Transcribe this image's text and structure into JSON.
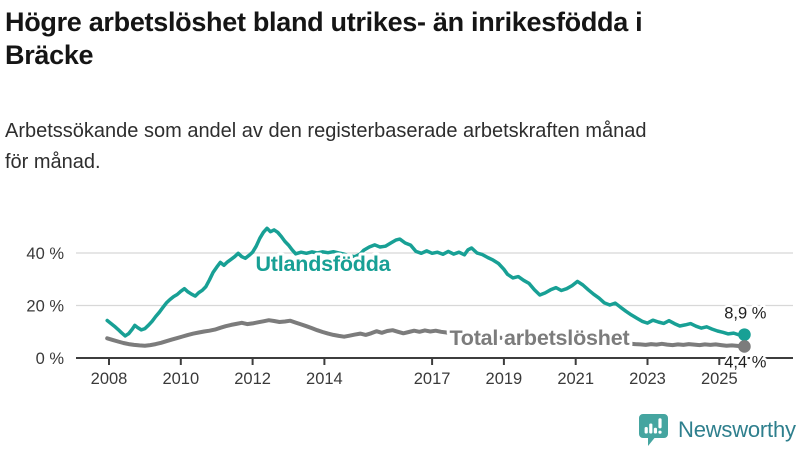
{
  "header": {
    "title_line1": "Högre arbetslöshet bland utrikes- än inrikesfödda i",
    "title_line2": "Bräcke",
    "subtitle_line1": "Arbetssökande som andel av den registerbaserade arbetskraften månad",
    "subtitle_line2": "för månad."
  },
  "chart_data": {
    "type": "line",
    "title": "Högre arbetslöshet bland utrikes- än inrikesfödda i Bräcke",
    "subtitle": "Arbetssökande som andel av den registerbaserade arbetskraften månad för månad.",
    "grid": "horizontal",
    "legend_position": "inline-labels",
    "x_axis": {
      "ticks": [
        2008,
        2010,
        2012,
        2014,
        2017,
        2019,
        2021,
        2023,
        2025
      ],
      "tick_labels": [
        "2008",
        "2010",
        "2012",
        "2014",
        "2017",
        "2019",
        "2021",
        "2023",
        "2025"
      ],
      "range": [
        2007.9,
        2027.0
      ]
    },
    "y_axis": {
      "ticks": [
        0,
        20,
        40
      ],
      "tick_labels": [
        "0 %",
        "20 %",
        "40 %"
      ],
      "range": [
        0,
        52
      ],
      "unit": "%"
    },
    "colors": {
      "grid": "#d8d8d8",
      "axis": "#3d3d3d",
      "tick_text": "#3a3a3a",
      "annotation_text": "#1f1f1f"
    },
    "series": [
      {
        "name": "Utlandsfödda",
        "color": "#18a095",
        "end_value": 8.9,
        "end_label": "8,9 %",
        "end_label_offset": [
          22,
          -16
        ],
        "label_pos": {
          "year": 2013.96,
          "pct": 36.2
        },
        "points": [
          [
            2007.95,
            14.3
          ],
          [
            2008.05,
            13.2
          ],
          [
            2008.15,
            12.1
          ],
          [
            2008.25,
            10.9
          ],
          [
            2008.35,
            9.6
          ],
          [
            2008.45,
            8.4
          ],
          [
            2008.55,
            9.3
          ],
          [
            2008.65,
            11.0
          ],
          [
            2008.72,
            12.4
          ],
          [
            2008.8,
            11.6
          ],
          [
            2008.9,
            10.7
          ],
          [
            2009.0,
            11.2
          ],
          [
            2009.1,
            12.5
          ],
          [
            2009.2,
            14.0
          ],
          [
            2009.3,
            15.8
          ],
          [
            2009.4,
            17.4
          ],
          [
            2009.5,
            19.2
          ],
          [
            2009.6,
            21.0
          ],
          [
            2009.7,
            22.3
          ],
          [
            2009.8,
            23.4
          ],
          [
            2009.9,
            24.2
          ],
          [
            2010.0,
            25.4
          ],
          [
            2010.1,
            26.4
          ],
          [
            2010.2,
            25.2
          ],
          [
            2010.3,
            24.3
          ],
          [
            2010.4,
            23.6
          ],
          [
            2010.5,
            24.9
          ],
          [
            2010.6,
            25.8
          ],
          [
            2010.7,
            27.2
          ],
          [
            2010.8,
            29.8
          ],
          [
            2010.9,
            32.6
          ],
          [
            2011.0,
            34.6
          ],
          [
            2011.1,
            36.4
          ],
          [
            2011.2,
            35.3
          ],
          [
            2011.3,
            36.6
          ],
          [
            2011.4,
            37.6
          ],
          [
            2011.5,
            38.6
          ],
          [
            2011.6,
            39.9
          ],
          [
            2011.7,
            38.6
          ],
          [
            2011.8,
            38.0
          ],
          [
            2011.9,
            39.1
          ],
          [
            2012.0,
            40.3
          ],
          [
            2012.1,
            42.6
          ],
          [
            2012.2,
            45.6
          ],
          [
            2012.3,
            47.9
          ],
          [
            2012.4,
            49.4
          ],
          [
            2012.5,
            48.1
          ],
          [
            2012.6,
            48.8
          ],
          [
            2012.7,
            47.9
          ],
          [
            2012.8,
            46.3
          ],
          [
            2012.9,
            44.4
          ],
          [
            2013.0,
            43.0
          ],
          [
            2013.1,
            41.2
          ],
          [
            2013.2,
            39.7
          ],
          [
            2013.35,
            40.3
          ],
          [
            2013.5,
            39.9
          ],
          [
            2013.65,
            40.4
          ],
          [
            2013.8,
            40.0
          ],
          [
            2013.95,
            40.4
          ],
          [
            2014.1,
            40.1
          ],
          [
            2014.25,
            40.5
          ],
          [
            2014.4,
            40.0
          ],
          [
            2014.55,
            39.6
          ],
          [
            2014.7,
            38.9
          ],
          [
            2014.85,
            38.6
          ],
          [
            2015.0,
            39.6
          ],
          [
            2015.1,
            41.1
          ],
          [
            2015.25,
            42.3
          ],
          [
            2015.4,
            43.1
          ],
          [
            2015.55,
            42.3
          ],
          [
            2015.7,
            42.6
          ],
          [
            2015.85,
            43.8
          ],
          [
            2016.0,
            45.0
          ],
          [
            2016.1,
            45.3
          ],
          [
            2016.25,
            43.8
          ],
          [
            2016.4,
            43.0
          ],
          [
            2016.55,
            40.6
          ],
          [
            2016.7,
            39.9
          ],
          [
            2016.85,
            40.8
          ],
          [
            2017.0,
            39.9
          ],
          [
            2017.15,
            40.3
          ],
          [
            2017.3,
            39.5
          ],
          [
            2017.45,
            40.6
          ],
          [
            2017.6,
            39.6
          ],
          [
            2017.75,
            40.3
          ],
          [
            2017.9,
            39.3
          ],
          [
            2018.0,
            41.2
          ],
          [
            2018.1,
            41.9
          ],
          [
            2018.25,
            40.0
          ],
          [
            2018.4,
            39.4
          ],
          [
            2018.55,
            38.3
          ],
          [
            2018.7,
            37.3
          ],
          [
            2018.85,
            36.0
          ],
          [
            2019.0,
            33.8
          ],
          [
            2019.1,
            31.9
          ],
          [
            2019.25,
            30.5
          ],
          [
            2019.4,
            31.0
          ],
          [
            2019.55,
            29.6
          ],
          [
            2019.7,
            28.4
          ],
          [
            2019.85,
            26.0
          ],
          [
            2020.0,
            24.0
          ],
          [
            2020.15,
            24.8
          ],
          [
            2020.3,
            26.0
          ],
          [
            2020.45,
            26.8
          ],
          [
            2020.6,
            25.7
          ],
          [
            2020.75,
            26.4
          ],
          [
            2020.9,
            27.6
          ],
          [
            2021.05,
            29.2
          ],
          [
            2021.2,
            27.8
          ],
          [
            2021.35,
            26.0
          ],
          [
            2021.5,
            24.3
          ],
          [
            2021.65,
            22.8
          ],
          [
            2021.8,
            21.0
          ],
          [
            2021.95,
            20.2
          ],
          [
            2022.1,
            20.9
          ],
          [
            2022.25,
            19.3
          ],
          [
            2022.4,
            17.8
          ],
          [
            2022.55,
            16.4
          ],
          [
            2022.7,
            15.2
          ],
          [
            2022.85,
            14.0
          ],
          [
            2023.0,
            13.3
          ],
          [
            2023.15,
            14.4
          ],
          [
            2023.3,
            13.7
          ],
          [
            2023.45,
            13.2
          ],
          [
            2023.6,
            14.2
          ],
          [
            2023.75,
            13.1
          ],
          [
            2023.9,
            12.2
          ],
          [
            2024.05,
            12.6
          ],
          [
            2024.2,
            13.1
          ],
          [
            2024.35,
            12.1
          ],
          [
            2024.5,
            11.4
          ],
          [
            2024.65,
            11.9
          ],
          [
            2024.8,
            11.0
          ],
          [
            2024.95,
            10.3
          ],
          [
            2025.1,
            9.8
          ],
          [
            2025.25,
            9.2
          ],
          [
            2025.4,
            9.5
          ],
          [
            2025.55,
            8.8
          ],
          [
            2025.7,
            8.9
          ]
        ]
      },
      {
        "name": "Total arbetslöshet",
        "color": "#7c7c7c",
        "end_value": 4.4,
        "end_label": "4,4 %",
        "end_label_offset": [
          22,
          21
        ],
        "label_pos": {
          "year": 2019.99,
          "pct": 8.0
        },
        "points": [
          [
            2007.95,
            7.5
          ],
          [
            2008.1,
            6.9
          ],
          [
            2008.25,
            6.3
          ],
          [
            2008.4,
            5.7
          ],
          [
            2008.55,
            5.3
          ],
          [
            2008.7,
            5.0
          ],
          [
            2008.85,
            4.8
          ],
          [
            2009.0,
            4.7
          ],
          [
            2009.15,
            4.9
          ],
          [
            2009.3,
            5.3
          ],
          [
            2009.45,
            5.8
          ],
          [
            2009.6,
            6.4
          ],
          [
            2009.75,
            7.0
          ],
          [
            2009.9,
            7.6
          ],
          [
            2010.05,
            8.2
          ],
          [
            2010.2,
            8.8
          ],
          [
            2010.35,
            9.3
          ],
          [
            2010.5,
            9.7
          ],
          [
            2010.65,
            10.1
          ],
          [
            2010.8,
            10.4
          ],
          [
            2010.95,
            10.8
          ],
          [
            2011.1,
            11.5
          ],
          [
            2011.25,
            12.1
          ],
          [
            2011.4,
            12.6
          ],
          [
            2011.55,
            13.0
          ],
          [
            2011.7,
            13.4
          ],
          [
            2011.85,
            12.9
          ],
          [
            2012.0,
            13.2
          ],
          [
            2012.15,
            13.6
          ],
          [
            2012.3,
            14.0
          ],
          [
            2012.45,
            14.4
          ],
          [
            2012.6,
            14.1
          ],
          [
            2012.75,
            13.7
          ],
          [
            2012.9,
            13.9
          ],
          [
            2013.05,
            14.2
          ],
          [
            2013.2,
            13.5
          ],
          [
            2013.35,
            12.8
          ],
          [
            2013.5,
            12.1
          ],
          [
            2013.65,
            11.4
          ],
          [
            2013.8,
            10.6
          ],
          [
            2013.95,
            9.9
          ],
          [
            2014.1,
            9.3
          ],
          [
            2014.25,
            8.8
          ],
          [
            2014.4,
            8.4
          ],
          [
            2014.55,
            8.1
          ],
          [
            2014.7,
            8.5
          ],
          [
            2014.85,
            8.9
          ],
          [
            2015.0,
            9.3
          ],
          [
            2015.15,
            8.8
          ],
          [
            2015.3,
            9.4
          ],
          [
            2015.45,
            10.2
          ],
          [
            2015.6,
            9.6
          ],
          [
            2015.75,
            10.3
          ],
          [
            2015.9,
            10.6
          ],
          [
            2016.05,
            10.0
          ],
          [
            2016.2,
            9.4
          ],
          [
            2016.35,
            9.9
          ],
          [
            2016.5,
            10.4
          ],
          [
            2016.65,
            10.0
          ],
          [
            2016.8,
            10.5
          ],
          [
            2016.95,
            10.1
          ],
          [
            2017.1,
            10.4
          ],
          [
            2017.25,
            10.0
          ],
          [
            2017.4,
            9.7
          ],
          [
            2017.55,
            9.4
          ],
          [
            2017.7,
            9.2
          ],
          [
            2017.85,
            9.0
          ],
          [
            2018.0,
            8.7
          ],
          [
            2018.3,
            8.3
          ],
          [
            2018.6,
            8.0
          ],
          [
            2018.9,
            7.7
          ],
          [
            2019.2,
            7.4
          ],
          [
            2019.5,
            7.2
          ],
          [
            2019.8,
            7.0
          ],
          [
            2020.1,
            7.3
          ],
          [
            2020.4,
            8.3
          ],
          [
            2020.7,
            8.7
          ],
          [
            2021.0,
            8.4
          ],
          [
            2021.3,
            7.7
          ],
          [
            2021.6,
            7.0
          ],
          [
            2021.9,
            6.4
          ],
          [
            2022.2,
            5.9
          ],
          [
            2022.5,
            5.5
          ],
          [
            2022.65,
            5.3
          ],
          [
            2022.8,
            5.2
          ],
          [
            2022.95,
            5.0
          ],
          [
            2023.1,
            5.3
          ],
          [
            2023.25,
            5.1
          ],
          [
            2023.4,
            5.4
          ],
          [
            2023.55,
            5.1
          ],
          [
            2023.7,
            4.9
          ],
          [
            2023.85,
            5.2
          ],
          [
            2024.0,
            5.0
          ],
          [
            2024.15,
            5.3
          ],
          [
            2024.3,
            5.1
          ],
          [
            2024.45,
            4.9
          ],
          [
            2024.6,
            5.2
          ],
          [
            2024.75,
            5.0
          ],
          [
            2024.9,
            5.2
          ],
          [
            2025.05,
            4.9
          ],
          [
            2025.2,
            4.7
          ],
          [
            2025.35,
            4.8
          ],
          [
            2025.5,
            4.6
          ],
          [
            2025.7,
            4.4
          ]
        ]
      }
    ]
  },
  "footer": {
    "brand": "Newsworthy"
  }
}
